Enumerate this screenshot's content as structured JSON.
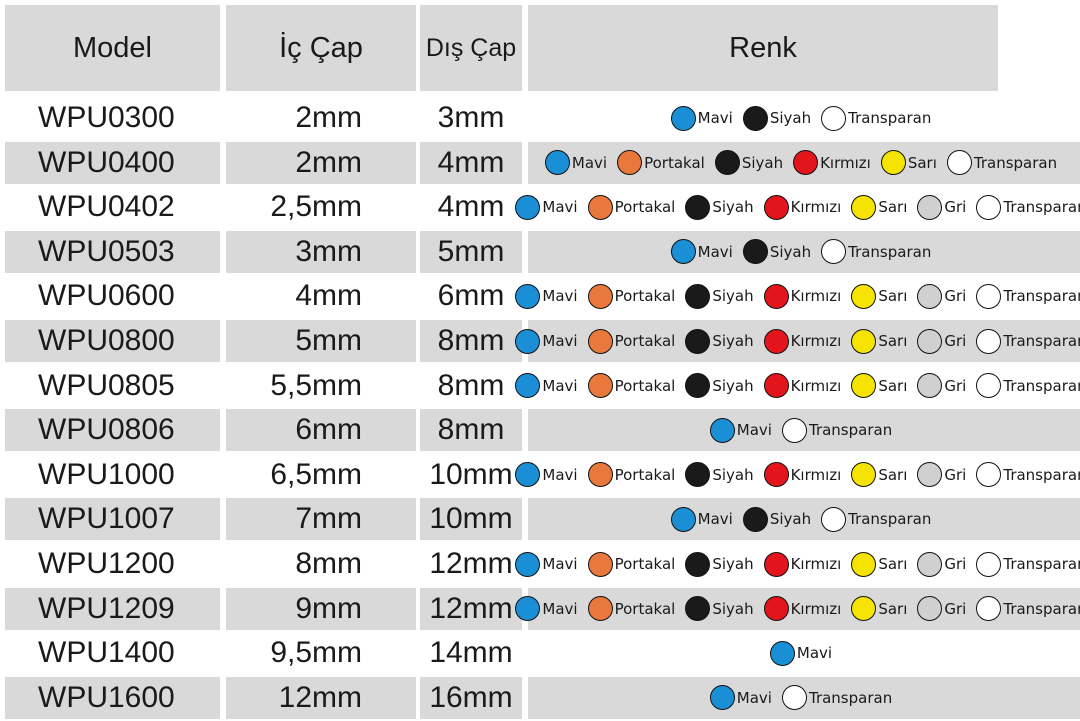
{
  "header": {
    "model": "Model",
    "ic_cap": "İç Çap",
    "dis_cap": "Dış Çap",
    "renk": "Renk"
  },
  "colors": {
    "Mavi": "#1b8fd6",
    "Portakal": "#e8783c",
    "Siyah": "#1a1a1a",
    "Kırmızı": "#e3141c",
    "Sarı": "#f5e400",
    "Gri": "#d0d0d0",
    "Transparan": "#ffffff"
  },
  "rows": [
    {
      "model": "WPU0300",
      "ic": "2mm",
      "dis": "3mm",
      "shaded": false,
      "renk": [
        "Mavi",
        "Siyah",
        "Transparan"
      ]
    },
    {
      "model": "WPU0400",
      "ic": "2mm",
      "dis": "4mm",
      "shaded": true,
      "renk": [
        "Mavi",
        "Portakal",
        "Siyah",
        "Kırmızı",
        "Sarı",
        "Transparan"
      ]
    },
    {
      "model": "WPU0402",
      "ic": "2,5mm",
      "dis": "4mm",
      "shaded": false,
      "renk": [
        "Mavi",
        "Portakal",
        "Siyah",
        "Kırmızı",
        "Sarı",
        "Gri",
        "Transparan"
      ]
    },
    {
      "model": "WPU0503",
      "ic": "3mm",
      "dis": "5mm",
      "shaded": true,
      "renk": [
        "Mavi",
        "Siyah",
        "Transparan"
      ]
    },
    {
      "model": "WPU0600",
      "ic": "4mm",
      "dis": "6mm",
      "shaded": false,
      "renk": [
        "Mavi",
        "Portakal",
        "Siyah",
        "Kırmızı",
        "Sarı",
        "Gri",
        "Transparan"
      ]
    },
    {
      "model": "WPU0800",
      "ic": "5mm",
      "dis": "8mm",
      "shaded": true,
      "renk": [
        "Mavi",
        "Portakal",
        "Siyah",
        "Kırmızı",
        "Sarı",
        "Gri",
        "Transparan"
      ]
    },
    {
      "model": "WPU0805",
      "ic": "5,5mm",
      "dis": "8mm",
      "shaded": false,
      "renk": [
        "Mavi",
        "Portakal",
        "Siyah",
        "Kırmızı",
        "Sarı",
        "Gri",
        "Transparan"
      ]
    },
    {
      "model": "WPU0806",
      "ic": "6mm",
      "dis": "8mm",
      "shaded": true,
      "renk": [
        "Mavi",
        "Transparan"
      ]
    },
    {
      "model": "WPU1000",
      "ic": "6,5mm",
      "dis": "10mm",
      "shaded": false,
      "renk": [
        "Mavi",
        "Portakal",
        "Siyah",
        "Kırmızı",
        "Sarı",
        "Gri",
        "Transparan"
      ]
    },
    {
      "model": "WPU1007",
      "ic": "7mm",
      "dis": "10mm",
      "shaded": true,
      "renk": [
        "Mavi",
        "Siyah",
        "Transparan"
      ]
    },
    {
      "model": "WPU1200",
      "ic": "8mm",
      "dis": "12mm",
      "shaded": false,
      "renk": [
        "Mavi",
        "Portakal",
        "Siyah",
        "Kırmızı",
        "Sarı",
        "Gri",
        "Transparan"
      ]
    },
    {
      "model": "WPU1209",
      "ic": "9mm",
      "dis": "12mm",
      "shaded": true,
      "renk": [
        "Mavi",
        "Portakal",
        "Siyah",
        "Kırmızı",
        "Sarı",
        "Gri",
        "Transparan"
      ]
    },
    {
      "model": "WPU1400",
      "ic": "9,5mm",
      "dis": "14mm",
      "shaded": false,
      "renk": [
        "Mavi"
      ]
    },
    {
      "model": "WPU1600",
      "ic": "12mm",
      "dis": "16mm",
      "shaded": true,
      "renk": [
        "Mavi",
        "Transparan"
      ]
    }
  ]
}
